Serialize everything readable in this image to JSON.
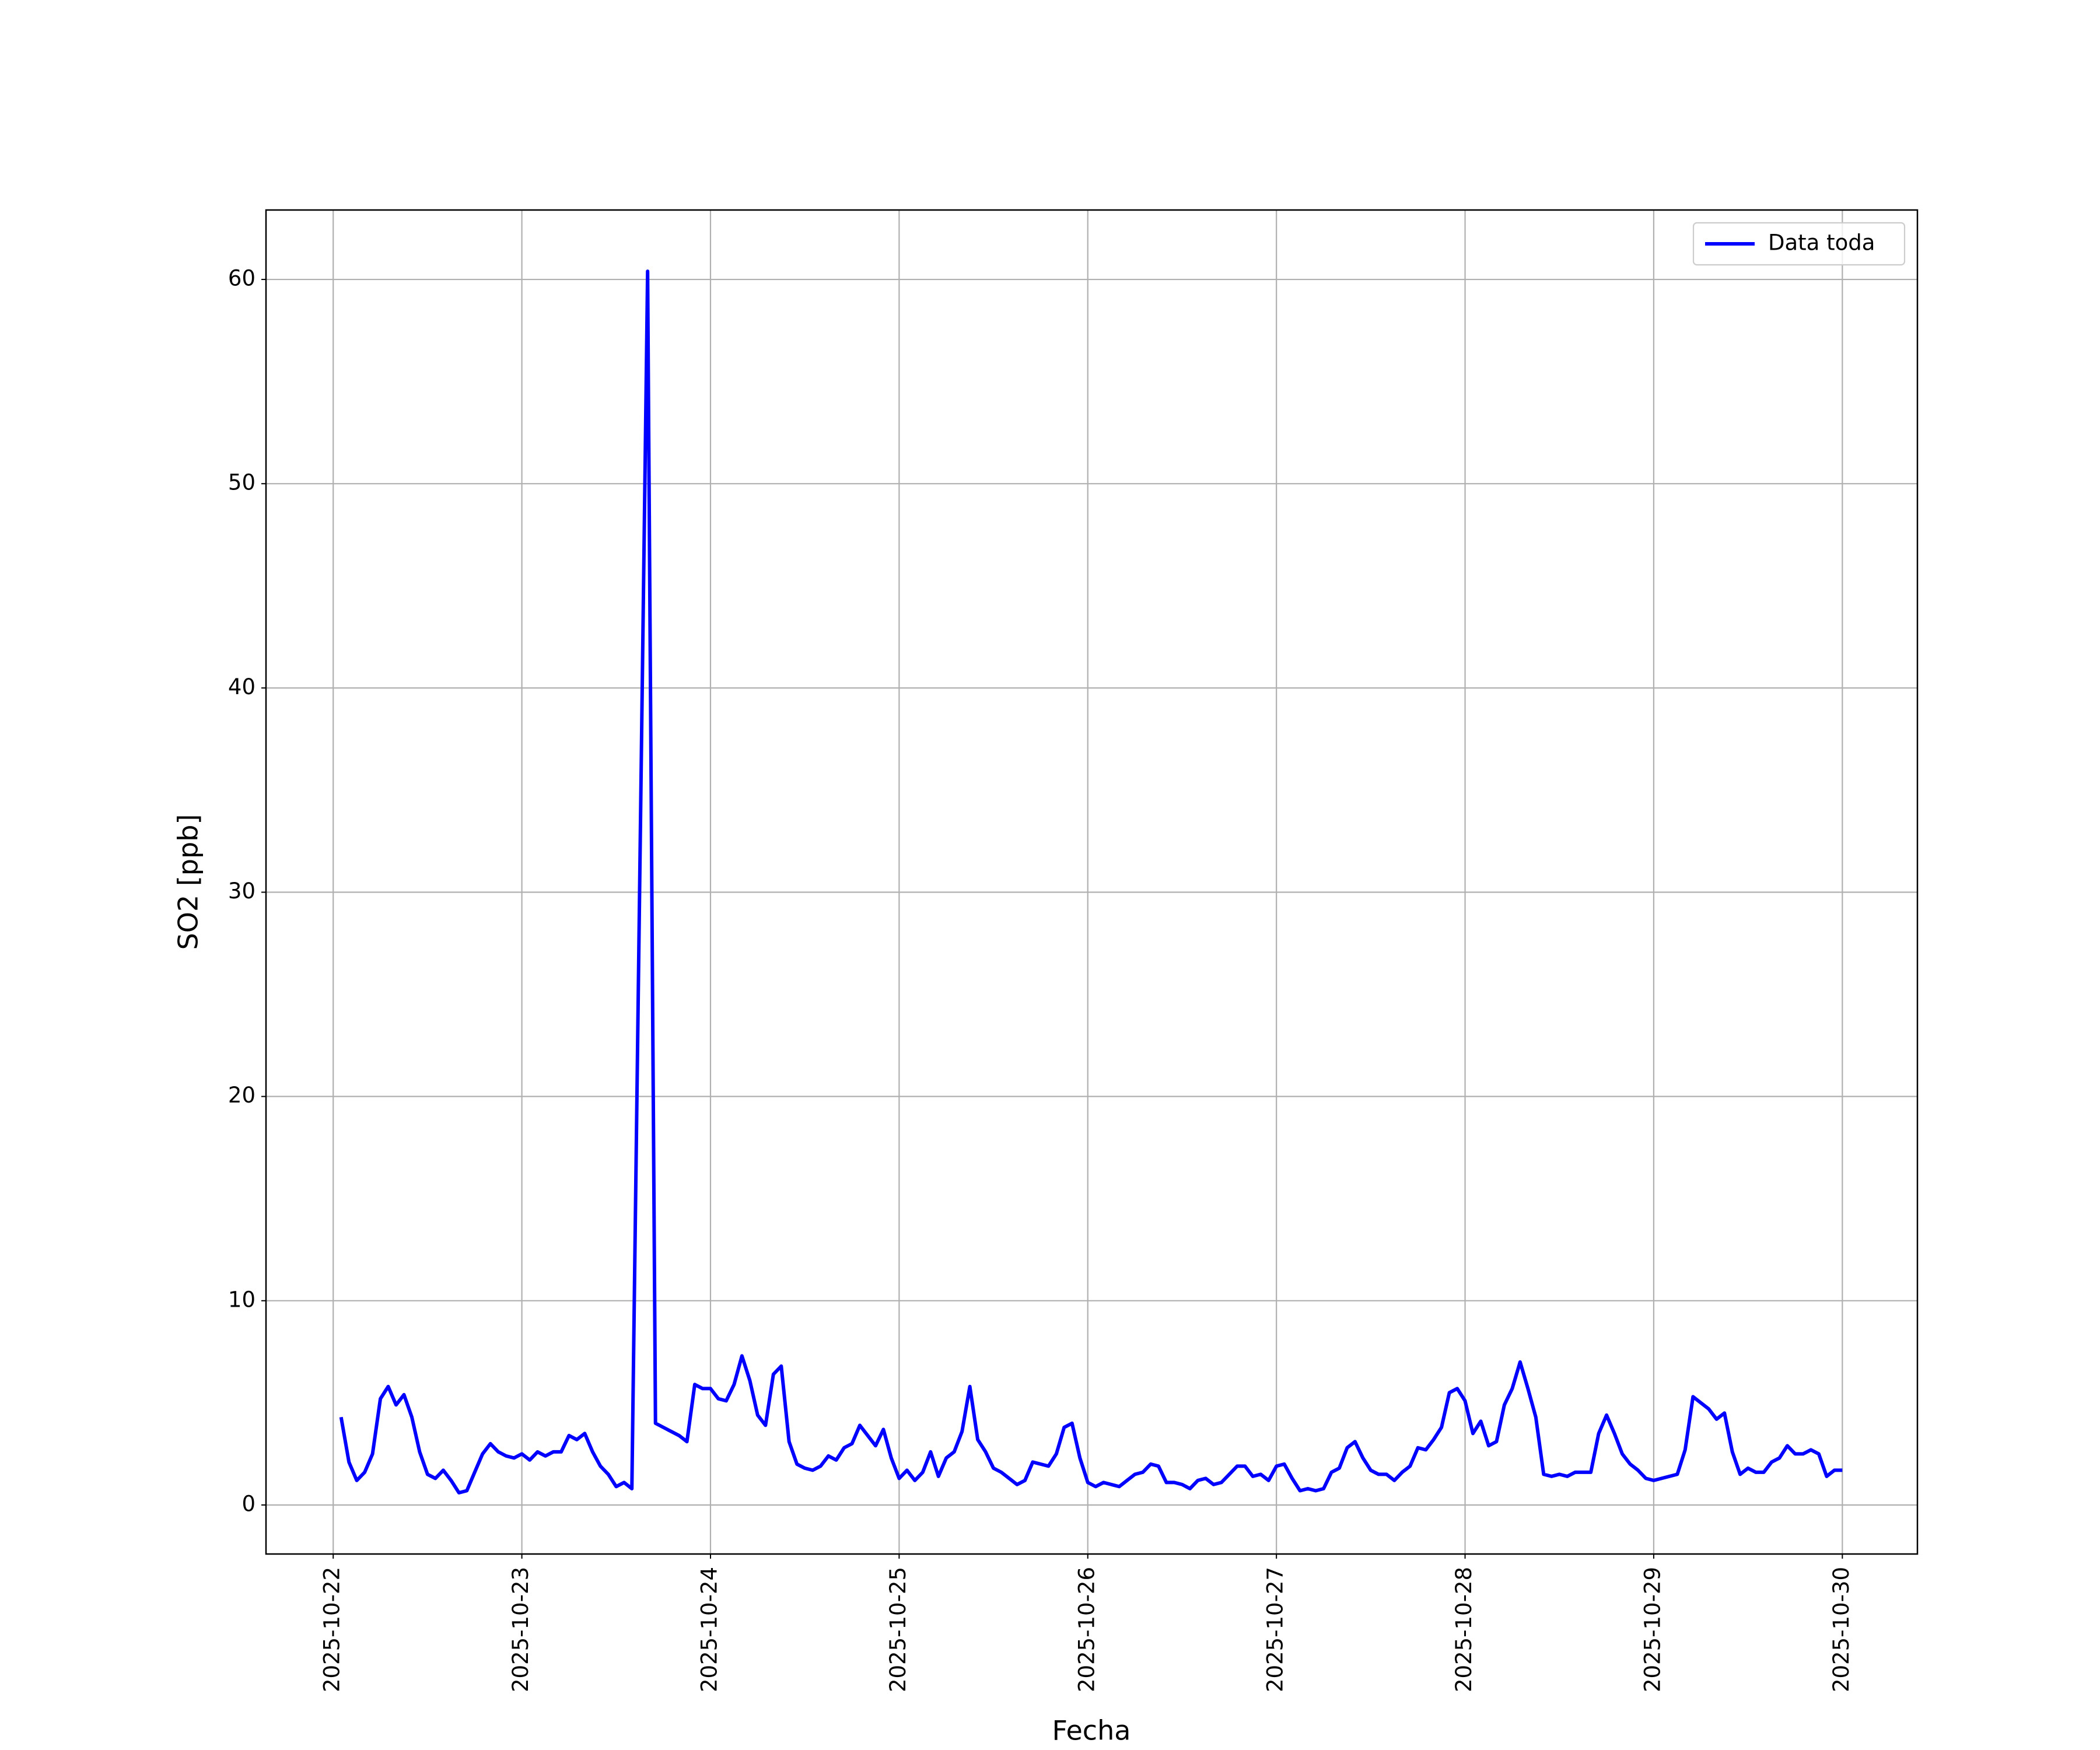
{
  "chart_data": {
    "type": "line",
    "xlabel": "Fecha",
    "ylabel": "SO2 [ppb]",
    "xlim": [
      "2025-10-21 15:27",
      "2025-10-30 09:33"
    ],
    "xticks": [
      "2025-10-22",
      "2025-10-23",
      "2025-10-24",
      "2025-10-25",
      "2025-10-26",
      "2025-10-27",
      "2025-10-28",
      "2025-10-29",
      "2025-10-30"
    ],
    "ylim": [
      -2.4,
      63.4
    ],
    "yticks": [
      0,
      10,
      20,
      30,
      40,
      50,
      60
    ],
    "grid": true,
    "legend": "upper right",
    "x": [
      "2025-10-22 01:00",
      "2025-10-22 02:00",
      "2025-10-22 03:00",
      "2025-10-22 04:00",
      "2025-10-22 05:00",
      "2025-10-22 06:00",
      "2025-10-22 07:00",
      "2025-10-22 08:00",
      "2025-10-22 09:00",
      "2025-10-22 10:00",
      "2025-10-22 11:00",
      "2025-10-22 12:00",
      "2025-10-22 13:00",
      "2025-10-22 14:00",
      "2025-10-22 15:00",
      "2025-10-22 16:00",
      "2025-10-22 17:00",
      "2025-10-22 18:00",
      "2025-10-22 19:00",
      "2025-10-22 20:00",
      "2025-10-22 21:00",
      "2025-10-22 22:00",
      "2025-10-22 23:00",
      "2025-10-23 00:00",
      "2025-10-23 01:00",
      "2025-10-23 02:00",
      "2025-10-23 03:00",
      "2025-10-23 04:00",
      "2025-10-23 05:00",
      "2025-10-23 06:00",
      "2025-10-23 07:00",
      "2025-10-23 08:00",
      "2025-10-23 09:00",
      "2025-10-23 10:00",
      "2025-10-23 11:00",
      "2025-10-23 12:00",
      "2025-10-23 13:00",
      "2025-10-23 14:00",
      "2025-10-23 16:00",
      "2025-10-23 17:00",
      "2025-10-23 18:00",
      "2025-10-23 19:00",
      "2025-10-23 20:00",
      "2025-10-23 21:00",
      "2025-10-23 22:00",
      "2025-10-23 23:00",
      "2025-10-24 00:00",
      "2025-10-24 01:00",
      "2025-10-24 02:00",
      "2025-10-24 03:00",
      "2025-10-24 04:00",
      "2025-10-24 05:00",
      "2025-10-24 06:00",
      "2025-10-24 07:00",
      "2025-10-24 08:00",
      "2025-10-24 09:00",
      "2025-10-24 10:00",
      "2025-10-24 11:00",
      "2025-10-24 12:00",
      "2025-10-24 13:00",
      "2025-10-24 14:00",
      "2025-10-24 15:00",
      "2025-10-24 16:00",
      "2025-10-24 17:00",
      "2025-10-24 18:00",
      "2025-10-24 19:00",
      "2025-10-24 20:00",
      "2025-10-24 21:00",
      "2025-10-24 22:00",
      "2025-10-24 23:00",
      "2025-10-25 00:00",
      "2025-10-25 01:00",
      "2025-10-25 02:00",
      "2025-10-25 03:00",
      "2025-10-25 04:00",
      "2025-10-25 05:00",
      "2025-10-25 06:00",
      "2025-10-25 07:00",
      "2025-10-25 08:00",
      "2025-10-25 09:00",
      "2025-10-25 10:00",
      "2025-10-25 11:00",
      "2025-10-25 12:00",
      "2025-10-25 13:00",
      "2025-10-25 14:00",
      "2025-10-25 15:00",
      "2025-10-25 16:00",
      "2025-10-25 17:00",
      "2025-10-25 18:00",
      "2025-10-25 19:00",
      "2025-10-25 20:00",
      "2025-10-25 21:00",
      "2025-10-25 22:00",
      "2025-10-25 23:00",
      "2025-10-26 00:00",
      "2025-10-26 01:00",
      "2025-10-26 02:00",
      "2025-10-26 03:00",
      "2025-10-26 04:00",
      "2025-10-26 05:00",
      "2025-10-26 06:00",
      "2025-10-26 07:00",
      "2025-10-26 08:00",
      "2025-10-26 09:00",
      "2025-10-26 10:00",
      "2025-10-26 11:00",
      "2025-10-26 12:00",
      "2025-10-26 13:00",
      "2025-10-26 14:00",
      "2025-10-26 15:00",
      "2025-10-26 16:00",
      "2025-10-26 17:00",
      "2025-10-26 18:00",
      "2025-10-26 19:00",
      "2025-10-26 20:00",
      "2025-10-26 21:00",
      "2025-10-26 22:00",
      "2025-10-26 23:00",
      "2025-10-27 00:00",
      "2025-10-27 01:00",
      "2025-10-27 02:00",
      "2025-10-27 03:00",
      "2025-10-27 04:00",
      "2025-10-27 05:00",
      "2025-10-27 06:00",
      "2025-10-27 07:00",
      "2025-10-27 08:00",
      "2025-10-27 09:00",
      "2025-10-27 10:00",
      "2025-10-27 11:00",
      "2025-10-27 12:00",
      "2025-10-27 13:00",
      "2025-10-27 14:00",
      "2025-10-27 15:00",
      "2025-10-27 16:00",
      "2025-10-27 17:00",
      "2025-10-27 18:00",
      "2025-10-27 19:00",
      "2025-10-27 20:00",
      "2025-10-27 21:00",
      "2025-10-27 22:00",
      "2025-10-27 23:00",
      "2025-10-28 00:00",
      "2025-10-28 01:00",
      "2025-10-28 02:00",
      "2025-10-28 03:00",
      "2025-10-28 04:00",
      "2025-10-28 05:00",
      "2025-10-28 06:00",
      "2025-10-28 07:00",
      "2025-10-28 08:00",
      "2025-10-28 09:00",
      "2025-10-28 10:00",
      "2025-10-28 11:00",
      "2025-10-28 12:00",
      "2025-10-28 13:00",
      "2025-10-28 14:00",
      "2025-10-28 15:00",
      "2025-10-28 16:00",
      "2025-10-28 17:00",
      "2025-10-28 18:00",
      "2025-10-28 19:00",
      "2025-10-28 20:00",
      "2025-10-28 21:00",
      "2025-10-28 22:00",
      "2025-10-28 23:00",
      "2025-10-29 00:00",
      "2025-10-29 01:00",
      "2025-10-29 02:00",
      "2025-10-29 03:00",
      "2025-10-29 04:00",
      "2025-10-29 05:00",
      "2025-10-29 06:00",
      "2025-10-29 07:00",
      "2025-10-29 08:00",
      "2025-10-29 09:00",
      "2025-10-29 10:00",
      "2025-10-29 11:00",
      "2025-10-29 12:00",
      "2025-10-29 13:00",
      "2025-10-29 14:00",
      "2025-10-29 15:00",
      "2025-10-29 16:00",
      "2025-10-29 17:00",
      "2025-10-29 18:00",
      "2025-10-29 19:00",
      "2025-10-29 20:00",
      "2025-10-29 21:00",
      "2025-10-29 22:00",
      "2025-10-29 23:00",
      "2025-10-30 00:00"
    ],
    "series": [
      {
        "name": "Data toda",
        "color": "#0000ff",
        "values": [
          4.3,
          2.1,
          1.2,
          1.6,
          2.5,
          5.2,
          5.8,
          4.9,
          5.4,
          4.3,
          2.6,
          1.5,
          1.3,
          1.7,
          1.2,
          0.6,
          0.7,
          1.6,
          2.5,
          3.0,
          2.6,
          2.4,
          2.3,
          2.5,
          2.2,
          2.6,
          2.4,
          2.6,
          2.6,
          3.4,
          3.2,
          3.5,
          2.6,
          1.9,
          1.5,
          0.9,
          1.1,
          0.8,
          60.4,
          4.0,
          3.8,
          3.6,
          3.4,
          3.1,
          5.9,
          5.7,
          5.7,
          5.2,
          5.1,
          5.9,
          7.3,
          6.1,
          4.4,
          3.9,
          6.4,
          6.8,
          3.1,
          2.0,
          1.8,
          1.7,
          1.9,
          2.4,
          2.2,
          2.8,
          3.0,
          3.9,
          3.4,
          2.9,
          3.7,
          2.3,
          1.3,
          1.7,
          1.2,
          1.6,
          2.6,
          1.4,
          2.3,
          2.6,
          3.6,
          5.8,
          3.2,
          2.6,
          1.8,
          1.6,
          1.3,
          1.0,
          1.2,
          2.1,
          2.0,
          1.9,
          2.5,
          3.8,
          4.0,
          2.3,
          1.1,
          0.9,
          1.1,
          1.0,
          0.9,
          1.2,
          1.5,
          1.6,
          2.0,
          1.9,
          1.1,
          1.1,
          1.0,
          0.8,
          1.2,
          1.3,
          1.0,
          1.1,
          1.5,
          1.9,
          1.9,
          1.4,
          1.5,
          1.2,
          1.9,
          2.0,
          1.3,
          0.7,
          0.8,
          0.7,
          0.8,
          1.6,
          1.8,
          2.8,
          3.1,
          2.3,
          1.7,
          1.5,
          1.5,
          1.2,
          1.6,
          1.9,
          2.8,
          2.7,
          3.2,
          3.8,
          5.5,
          5.7,
          5.1,
          3.5,
          4.1,
          2.9,
          3.1,
          4.9,
          5.7,
          7.0,
          5.7,
          4.3,
          1.5,
          1.4,
          1.5,
          1.4,
          1.6,
          1.6,
          1.6,
          3.5,
          4.4,
          3.5,
          2.5,
          2.0,
          1.7,
          1.3,
          1.2,
          1.3,
          1.4,
          1.5,
          2.7,
          5.3,
          5.0,
          4.7,
          4.2,
          4.5,
          2.6,
          1.5,
          1.8,
          1.6,
          1.6,
          2.1,
          2.3,
          2.9,
          2.5,
          2.5,
          2.7,
          2.5,
          1.4,
          1.7,
          1.7
        ]
      }
    ]
  }
}
